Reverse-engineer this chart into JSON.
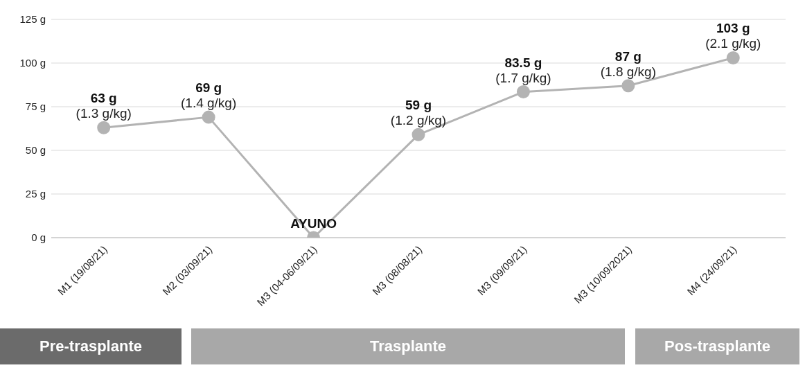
{
  "chart_data": {
    "type": "line",
    "categories": [
      "M1 (19/08/21)",
      "M2 (03/09/21)",
      "M3 (04-06/09/21)",
      "M3 (08/08/21)",
      "M3 (09/09/21)",
      "M3 (10/09/2021)",
      "M4 (24/09/21)"
    ],
    "values": [
      63,
      69,
      0,
      59,
      83.5,
      87,
      103
    ],
    "color": "#b3b3b3",
    "value_labels": [
      "63 g",
      "69 g",
      "AYUNO",
      "59 g",
      "83.5 g",
      "87 g",
      "103 g"
    ],
    "annotations": [
      {
        "text": "(1.3 g/kg)",
        "x": "M1 (19/08/21)",
        "y": 63
      },
      {
        "text": "(1.4 g/kg)",
        "x": "M2 (03/09/21)",
        "y": 69
      },
      {
        "text": "(1.2 g/kg)",
        "x": "M3 (08/08/21)",
        "y": 59
      },
      {
        "text": "(1.7 g/kg)",
        "x": "M3 (09/09/21)",
        "y": 83.5
      },
      {
        "text": "(1.8 g/kg)",
        "x": "M3 (10/09/2021)",
        "y": 87
      },
      {
        "text": "(2.1 g/kg)",
        "x": "M4 (24/09/21)",
        "y": 103
      },
      "Pre-trasplante",
      "Trasplante",
      "Pos-trasplante"
    ],
    "ylim": [
      0,
      125
    ],
    "yticks": [
      {
        "value": 0,
        "label": "0 g"
      },
      {
        "value": 25,
        "label": "25 g"
      },
      {
        "value": 50,
        "label": "50 g"
      },
      {
        "value": 75,
        "label": "75 g"
      },
      {
        "value": 100,
        "label": "100 g"
      },
      {
        "value": 125,
        "label": "125 g"
      }
    ],
    "grid": "y",
    "marker": "circle",
    "line_style": "solid"
  }
}
